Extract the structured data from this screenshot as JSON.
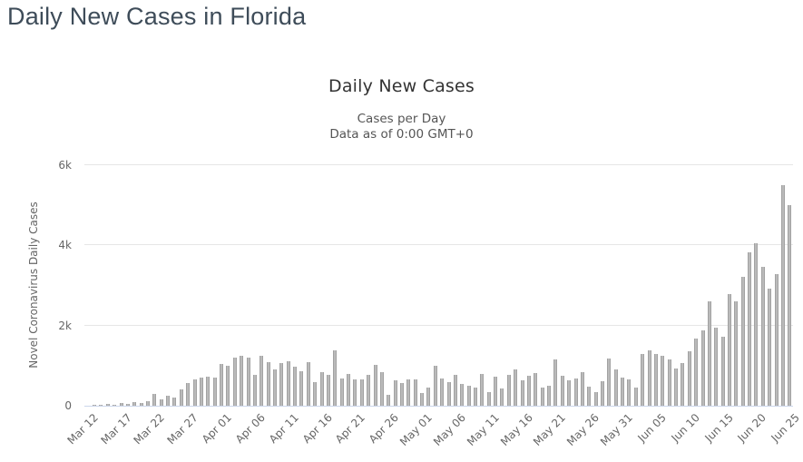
{
  "page": {
    "title": "Daily New Cases in Florida"
  },
  "chart_data": {
    "type": "bar",
    "title": "Daily New Cases",
    "subtitle_line1": "Cases per Day",
    "subtitle_line2": "Data as of 0:00 GMT+0",
    "xlabel": "",
    "ylabel": "Novel Coronavirus Daily Cases",
    "ylim": [
      0,
      6000
    ],
    "y_ticks": [
      0,
      2000,
      4000,
      6000
    ],
    "y_tick_labels": [
      "0",
      "2k",
      "4k",
      "6k"
    ],
    "x_tick_interval": 5,
    "x_tick_labels": [
      "Mar 12",
      "Mar 17",
      "Mar 22",
      "Mar 27",
      "Apr 01",
      "Apr 06",
      "Apr 11",
      "Apr 16",
      "Apr 21",
      "Apr 26",
      "May 01",
      "May 06",
      "May 11",
      "May 16",
      "May 21",
      "May 26",
      "May 31",
      "Jun 05",
      "Jun 10",
      "Jun 15",
      "Jun 20",
      "Jun 25"
    ],
    "grid": true,
    "legend": false,
    "bar_color": "#a6a6a6",
    "grid_color": "#e6e6e6",
    "axis_line_color": "#ccd6eb",
    "categories": [
      "Mar 12",
      "Mar 13",
      "Mar 14",
      "Mar 15",
      "Mar 16",
      "Mar 17",
      "Mar 18",
      "Mar 19",
      "Mar 20",
      "Mar 21",
      "Mar 22",
      "Mar 23",
      "Mar 24",
      "Mar 25",
      "Mar 26",
      "Mar 27",
      "Mar 28",
      "Mar 29",
      "Mar 30",
      "Mar 31",
      "Apr 01",
      "Apr 02",
      "Apr 03",
      "Apr 04",
      "Apr 05",
      "Apr 06",
      "Apr 07",
      "Apr 08",
      "Apr 09",
      "Apr 10",
      "Apr 11",
      "Apr 12",
      "Apr 13",
      "Apr 14",
      "Apr 15",
      "Apr 16",
      "Apr 17",
      "Apr 18",
      "Apr 19",
      "Apr 20",
      "Apr 21",
      "Apr 22",
      "Apr 23",
      "Apr 24",
      "Apr 25",
      "Apr 26",
      "Apr 27",
      "Apr 28",
      "Apr 29",
      "Apr 30",
      "May 01",
      "May 02",
      "May 03",
      "May 04",
      "May 05",
      "May 06",
      "May 07",
      "May 08",
      "May 09",
      "May 10",
      "May 11",
      "May 12",
      "May 13",
      "May 14",
      "May 15",
      "May 16",
      "May 17",
      "May 18",
      "May 19",
      "May 20",
      "May 21",
      "May 22",
      "May 23",
      "May 24",
      "May 25",
      "May 26",
      "May 27",
      "May 28",
      "May 29",
      "May 30",
      "May 31",
      "Jun 01",
      "Jun 02",
      "Jun 03",
      "Jun 04",
      "Jun 05",
      "Jun 06",
      "Jun 07",
      "Jun 08",
      "Jun 09",
      "Jun 10",
      "Jun 11",
      "Jun 12",
      "Jun 13",
      "Jun 14",
      "Jun 15",
      "Jun 16",
      "Jun 17",
      "Jun 18",
      "Jun 19",
      "Jun 20",
      "Jun 21",
      "Jun 22",
      "Jun 23",
      "Jun 24",
      "Jun 25"
    ],
    "values": [
      10,
      15,
      30,
      40,
      25,
      70,
      50,
      85,
      60,
      120,
      290,
      160,
      250,
      215,
      410,
      560,
      650,
      705,
      725,
      700,
      1035,
      990,
      1190,
      1240,
      1210,
      780,
      1235,
      1090,
      915,
      1065,
      1120,
      975,
      855,
      1080,
      580,
      840,
      765,
      1385,
      690,
      795,
      665,
      650,
      765,
      1030,
      840,
      270,
      630,
      575,
      665,
      650,
      310,
      445,
      1005,
      690,
      590,
      765,
      550,
      500,
      460,
      800,
      350,
      725,
      425,
      780,
      900,
      630,
      750,
      815,
      460,
      500,
      1165,
      740,
      635,
      690,
      840,
      475,
      335,
      615,
      1175,
      900,
      710,
      650,
      460,
      1300,
      1390,
      1280,
      1240,
      1150,
      925,
      1075,
      1360,
      1665,
      1890,
      2600,
      1945,
      1730,
      2790,
      2600,
      3205,
      3835,
      4055,
      3470,
      2920,
      3280,
      5510,
      5000
    ]
  }
}
